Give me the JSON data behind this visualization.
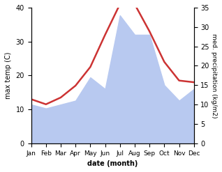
{
  "months": [
    "Jan",
    "Feb",
    "Mar",
    "Apr",
    "May",
    "Jun",
    "Jul",
    "Aug",
    "Sep",
    "Oct",
    "Nov",
    "Dec"
  ],
  "temp": [
    13.0,
    11.5,
    13.5,
    17.0,
    22.5,
    32.0,
    41.0,
    41.0,
    33.0,
    24.0,
    18.5,
    18.0
  ],
  "precip": [
    10.0,
    9.0,
    10.0,
    11.0,
    17.0,
    14.0,
    33.0,
    28.0,
    28.0,
    15.0,
    11.0,
    14.0
  ],
  "temp_color": "#cc3333",
  "precip_color": "#b8c9f0",
  "ylabel_left": "max temp (C)",
  "ylabel_right": "med. precipitation (kg/m2)",
  "xlabel": "date (month)",
  "ylim_left": [
    0,
    40
  ],
  "ylim_right": [
    0,
    35
  ],
  "yticks_left": [
    0,
    10,
    20,
    30,
    40
  ],
  "yticks_right": [
    0,
    5,
    10,
    15,
    20,
    25,
    30,
    35
  ],
  "bg_color": "#ffffff",
  "temp_linewidth": 1.8,
  "scale_factor": 1.1428571
}
